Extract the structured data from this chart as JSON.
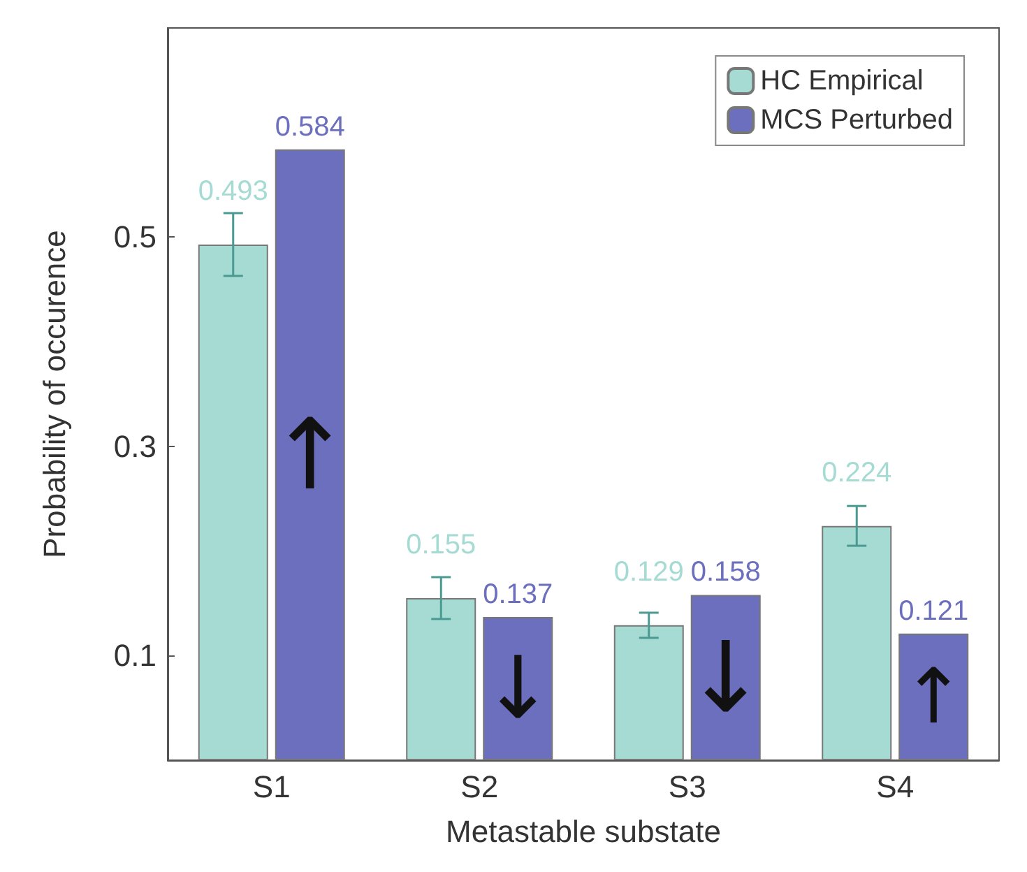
{
  "chart_data": {
    "type": "bar",
    "xlabel": "Metastable substate",
    "ylabel": "Probability of occurence",
    "categories": [
      "S1",
      "S2",
      "S3",
      "S4"
    ],
    "series": [
      {
        "name": "HC Empirical",
        "color": "#a6dbd3",
        "values": [
          0.493,
          0.155,
          0.129,
          0.224
        ],
        "errors": [
          0.03,
          0.02,
          0.012,
          0.019
        ]
      },
      {
        "name": "MCS Perturbed",
        "color": "#6b6fbd",
        "values": [
          0.584,
          0.137,
          0.158,
          0.121
        ]
      }
    ],
    "annotations": [
      {
        "text": "↑",
        "x": "S1",
        "y": 0.584
      },
      {
        "text": "↓",
        "x": "S2",
        "y": 0.137
      },
      {
        "text": "↓",
        "x": "S3",
        "y": 0.158
      },
      {
        "text": "↑",
        "x": "S4",
        "y": 0.121
      }
    ],
    "ylim": [
      0,
      0.7
    ],
    "yticks": [
      0.1,
      0.3,
      0.5
    ],
    "grid": false,
    "legend": "top right",
    "data_labels": true
  }
}
